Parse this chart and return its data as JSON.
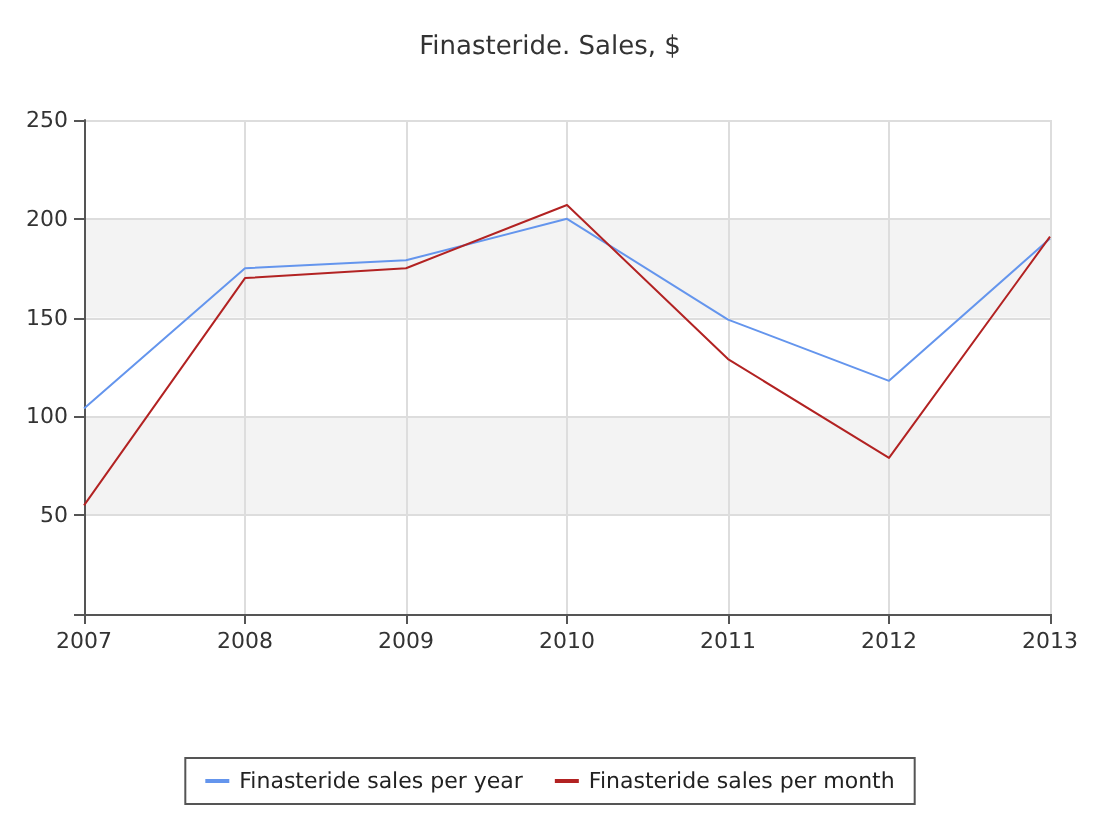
{
  "chart_data": {
    "type": "line",
    "title": "Finasteride. Sales, $",
    "categories": [
      "2007",
      "2008",
      "2009",
      "2010",
      "2011",
      "2012",
      "2013"
    ],
    "series": [
      {
        "name": "Finasteride sales per year",
        "color": "#6495ed",
        "values": [
          104,
          175,
          179,
          200,
          149,
          118,
          190
        ]
      },
      {
        "name": "Finasteride sales per month",
        "color": "#b22222",
        "values": [
          55,
          170,
          175,
          207,
          129,
          79,
          191
        ]
      }
    ],
    "ylim": [
      0,
      250
    ],
    "yticks": [
      {
        "value": 0,
        "label": null
      },
      50,
      100,
      150,
      200,
      250
    ],
    "grid": true,
    "legend": "bottom",
    "marker": "none",
    "line_style": "solid"
  }
}
